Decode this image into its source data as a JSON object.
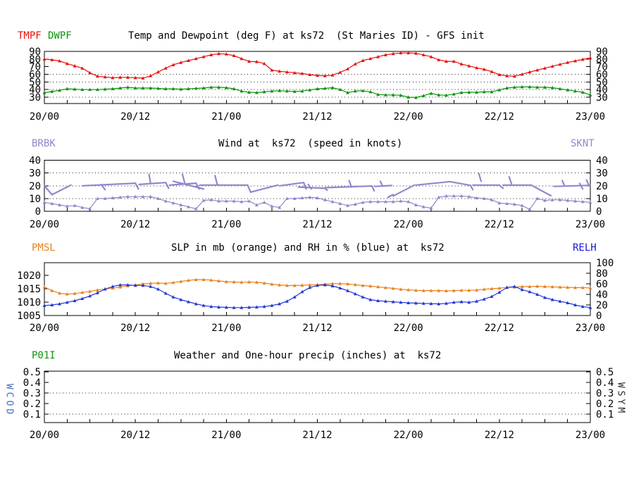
{
  "x_axis": {
    "major_labels": [
      "20/00",
      "20/12",
      "21/00",
      "21/12",
      "22/00",
      "22/12",
      "23/00"
    ],
    "major_hours": [
      0,
      12,
      24,
      36,
      48,
      60,
      72
    ],
    "minor_step_hours": 3,
    "hours_span": 72
  },
  "side_labels": {
    "wcod": {
      "text": "WCOD",
      "color": "#3f6db8"
    },
    "wsym": {
      "text": "WSYM",
      "color": "#2a2a2a"
    }
  },
  "chart_data": [
    {
      "type": "line",
      "panel": "temp-dewpoint",
      "title": "Temp and Dewpoint (deg F) at ks72  (St Maries ID) - GFS init",
      "legends": [
        {
          "text": "TMPF",
          "color": "#e8100c"
        },
        {
          "text": "DWPF",
          "color": "#0c930c"
        }
      ],
      "yticks": {
        "left": {
          "values": [
            30,
            40,
            50,
            60,
            70,
            80,
            90
          ],
          "labels": [
            "30",
            "40",
            "50",
            "60",
            "70",
            "80",
            "90"
          ]
        },
        "right": "same"
      },
      "ylim_left": [
        21.7,
        90
      ],
      "grid_values": [
        30,
        40,
        50,
        60
      ],
      "series": [
        {
          "name": "TMPF",
          "axis": "left",
          "color": "#e8100c",
          "values": [
            80,
            79,
            77.5,
            74,
            71,
            68,
            62,
            57.5,
            56.5,
            55.5,
            56,
            56,
            55.5,
            55,
            58,
            63,
            68,
            72.5,
            75.5,
            78,
            80.5,
            83,
            85.5,
            87,
            86.5,
            84.5,
            80.5,
            77,
            76.5,
            74,
            65.5,
            64,
            63,
            62,
            61,
            59.5,
            58.5,
            58,
            59,
            62.5,
            67,
            73.5,
            78,
            80.5,
            83,
            85.5,
            87,
            88,
            88,
            87.5,
            85.5,
            83,
            79,
            77,
            77,
            73.5,
            71,
            68.5,
            66.5,
            63.5,
            59.5,
            58,
            57.5,
            60,
            63,
            65.5,
            68,
            70.5,
            73,
            75.5,
            77.5,
            79.5,
            81.5
          ]
        },
        {
          "name": "DWPF",
          "axis": "left",
          "color": "#0c930c",
          "values": [
            36,
            37.5,
            39,
            41,
            40.5,
            40,
            40,
            40,
            40.5,
            41,
            42,
            43,
            42,
            42,
            42,
            41.5,
            41,
            41,
            40.5,
            41,
            41.5,
            42,
            43,
            43,
            42.5,
            41,
            38,
            36.5,
            36,
            37,
            38,
            38.5,
            38,
            37.5,
            38,
            39.5,
            41,
            41.5,
            42.5,
            40,
            36,
            38,
            38.5,
            37,
            33.5,
            33,
            33,
            32.5,
            30,
            29.5,
            32,
            35,
            33,
            32.5,
            34,
            36,
            36.5,
            36.5,
            37,
            37,
            39.5,
            42,
            43,
            43.5,
            43.5,
            43,
            43,
            42.5,
            41,
            39.5,
            38,
            36.5,
            33
          ]
        }
      ]
    },
    {
      "type": "line+barbs",
      "panel": "wind",
      "title": "Wind at  ks72  (speed in knots)",
      "legends": [
        {
          "text": "BRBK",
          "color": "#9486cb"
        },
        {
          "text": "SKNT",
          "color": "#9486cb"
        }
      ],
      "yticks": {
        "left": {
          "values": [
            0,
            10,
            20,
            30,
            40
          ],
          "labels": [
            "0",
            "10",
            "20",
            "30",
            "40"
          ]
        },
        "right": "same"
      },
      "ylim_left": [
        0,
        40
      ],
      "grid_values": [
        10,
        20,
        30
      ],
      "series": [
        {
          "name": "SKNT",
          "axis": "left",
          "color": "#9486cb",
          "values": [
            7,
            6,
            5,
            4,
            4.5,
            3,
            2,
            10,
            10,
            10.5,
            11,
            11.5,
            11.5,
            11.5,
            11.5,
            10,
            8,
            6.5,
            5,
            3.5,
            2,
            8.5,
            9,
            8,
            8,
            8,
            7.5,
            8,
            5,
            7,
            4,
            3,
            10,
            10,
            10.5,
            11,
            10.5,
            9,
            7.5,
            6,
            4.5,
            5.5,
            7,
            7.5,
            7.5,
            7.5,
            7.5,
            8,
            7.5,
            5,
            3.5,
            2.5,
            11,
            12,
            12,
            12,
            11.5,
            10.5,
            10,
            9,
            6.5,
            6,
            5.5,
            4.5,
            1.5,
            10,
            8.5,
            9,
            9,
            8.5,
            8,
            7.5,
            7
          ]
        }
      ],
      "barb_color": "#9486cb",
      "barb_strokes": [
        [
          [
            0,
            20
          ],
          [
            1,
            13
          ]
        ],
        [
          [
            1,
            13
          ],
          [
            3.5,
            20.5
          ]
        ],
        [
          [
            5,
            20
          ],
          [
            12,
            22
          ],
          [
            12.4,
            17.5
          ]
        ],
        [
          [
            7.5,
            21
          ],
          [
            8,
            17
          ]
        ],
        [
          [
            12.5,
            21
          ],
          [
            16,
            22.5
          ],
          [
            16.4,
            18
          ]
        ],
        [
          [
            13.8,
            29
          ],
          [
            14,
            22
          ]
        ],
        [
          [
            16.5,
            20.5
          ],
          [
            20,
            22
          ],
          [
            20.4,
            17.5
          ]
        ],
        [
          [
            17,
            23.5
          ],
          [
            21,
            17.5
          ]
        ],
        [
          [
            18.2,
            29
          ],
          [
            18.5,
            22.5
          ]
        ],
        [
          [
            20.5,
            20.5
          ],
          [
            26.8,
            20.5
          ]
        ],
        [
          [
            22.5,
            28
          ],
          [
            22.8,
            21
          ]
        ],
        [
          [
            26.8,
            20.5
          ],
          [
            27.2,
            15
          ]
        ],
        [
          [
            27.2,
            15
          ],
          [
            30.8,
            20.5
          ]
        ],
        [
          [
            31,
            20
          ],
          [
            34.2,
            22.5
          ],
          [
            34.5,
            17.5
          ]
        ],
        [
          [
            33.5,
            19
          ],
          [
            37,
            18
          ],
          [
            37.3,
            16.5
          ]
        ],
        [
          [
            34.8,
            21
          ],
          [
            35.2,
            17.5
          ]
        ],
        [
          [
            37,
            18.5
          ],
          [
            43.2,
            19.8
          ],
          [
            43.5,
            16
          ]
        ],
        [
          [
            40.2,
            24
          ],
          [
            40.5,
            19
          ]
        ],
        [
          [
            43.6,
            19.5
          ],
          [
            45.8,
            20.2
          ]
        ],
        [
          [
            44.3,
            23.5
          ],
          [
            44.6,
            19.8
          ]
        ],
        [
          [
            46,
            13
          ],
          [
            45.3,
            11
          ]
        ],
        [
          [
            46,
            12
          ],
          [
            48.8,
            20.5
          ]
        ],
        [
          [
            49,
            20.5
          ],
          [
            53.5,
            23.2
          ],
          [
            56.2,
            20.3
          ]
        ],
        [
          [
            56.2,
            20.3
          ],
          [
            56.5,
            17
          ]
        ],
        [
          [
            56.5,
            20.5
          ],
          [
            60,
            20.5
          ]
        ],
        [
          [
            57.3,
            29.5
          ],
          [
            57.6,
            23.5
          ]
        ],
        [
          [
            60,
            20.5
          ],
          [
            60.5,
            18
          ]
        ],
        [
          [
            60.5,
            20.5
          ],
          [
            64.2,
            20.5
          ]
        ],
        [
          [
            61.3,
            27
          ],
          [
            61.6,
            21.5
          ]
        ],
        [
          [
            64.2,
            20.5
          ],
          [
            66.8,
            12.2
          ]
        ],
        [
          [
            67.2,
            19.5
          ],
          [
            72,
            20.3
          ]
        ],
        [
          [
            68.3,
            24
          ],
          [
            68.6,
            20
          ]
        ],
        [
          [
            70.6,
            21.8
          ],
          [
            71,
            17.5
          ]
        ],
        [
          [
            71.5,
            24.5
          ],
          [
            71.8,
            20.5
          ]
        ]
      ]
    },
    {
      "type": "line",
      "panel": "slp-rh",
      "title": "SLP in mb (orange) and RH in % (blue) at  ks72",
      "legends": [
        {
          "text": "PMSL",
          "color": "#e8821e"
        },
        {
          "text": "RELH",
          "color": "#1717e0"
        }
      ],
      "yticks": {
        "left": {
          "values": [
            1005,
            1010,
            1015,
            1020
          ],
          "labels": [
            "1005",
            "1010",
            "1015",
            "1020"
          ]
        },
        "right": {
          "values": [
            0,
            20,
            40,
            60,
            80,
            100
          ],
          "labels": [
            "0",
            "20",
            "40",
            "60",
            "80",
            "100"
          ]
        }
      },
      "ylim_left": [
        1005,
        1024.7
      ],
      "ylim_right": [
        0,
        100
      ],
      "grid_values": [],
      "series": [
        {
          "name": "PMSL",
          "axis": "left",
          "color": "#e8821e",
          "values": [
            1015.6,
            1014.3,
            1013.3,
            1013.0,
            1013.2,
            1013.6,
            1014.0,
            1014.5,
            1014.9,
            1015.2,
            1015.6,
            1016.1,
            1016.4,
            1016.8,
            1017.0,
            1017.1,
            1017.0,
            1017.3,
            1017.7,
            1018.1,
            1018.4,
            1018.4,
            1018.2,
            1017.9,
            1017.6,
            1017.5,
            1017.4,
            1017.5,
            1017.4,
            1017.1,
            1016.7,
            1016.4,
            1016.2,
            1016.2,
            1016.3,
            1016.4,
            1016.5,
            1016.7,
            1016.9,
            1016.9,
            1016.8,
            1016.5,
            1016.2,
            1016.0,
            1015.7,
            1015.4,
            1015.1,
            1014.8,
            1014.6,
            1014.4,
            1014.3,
            1014.3,
            1014.3,
            1014.2,
            1014.3,
            1014.4,
            1014.4,
            1014.5,
            1014.8,
            1015.0,
            1015.2,
            1015.5,
            1015.6,
            1015.8,
            1015.8,
            1015.9,
            1015.8,
            1015.7,
            1015.6,
            1015.5,
            1015.4,
            1015.4,
            1015.3
          ]
        },
        {
          "name": "RELH",
          "axis": "right",
          "color": "#2337d4",
          "values": [
            19,
            20,
            22,
            25,
            28,
            32,
            37,
            43,
            50,
            55,
            58,
            58,
            57,
            57,
            55,
            50,
            42,
            35,
            30,
            26,
            22,
            19,
            17,
            16,
            15.5,
            15,
            15,
            15.5,
            16,
            17,
            19,
            22,
            27,
            35,
            45,
            53,
            57,
            58,
            56,
            52,
            47,
            41,
            35,
            30,
            28,
            27,
            26,
            25,
            24,
            23.5,
            23,
            22.5,
            22,
            23,
            25,
            26,
            25,
            27,
            31,
            36,
            44,
            53,
            55,
            49,
            45,
            40,
            34,
            30,
            27,
            24,
            20,
            17,
            15
          ]
        }
      ]
    },
    {
      "type": "line",
      "panel": "precip",
      "title": "Weather and One-hour precip (inches) at  ks72",
      "legends": [
        {
          "text": "P01I",
          "color": "#0c930c"
        }
      ],
      "yticks": {
        "left": {
          "values": [
            0.1,
            0.2,
            0.3,
            0.4,
            0.5
          ],
          "labels": [
            "0.1",
            "0.2",
            "0.3",
            "0.4",
            "0.5"
          ]
        },
        "right": "same"
      },
      "ylim_left": [
        0.02,
        0.507
      ],
      "grid_values": [
        0.1,
        0.3
      ],
      "series": []
    }
  ]
}
